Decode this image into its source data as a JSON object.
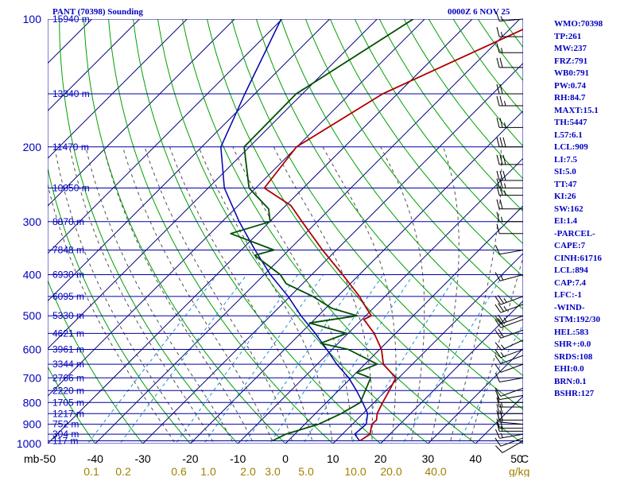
{
  "header": {
    "station_title": "PANT (70398) Sounding",
    "datetime": "0000Z  6 NOV 25"
  },
  "indices": [
    "WMO:70398",
    "TP:261",
    "MW:237",
    "FRZ:791",
    "WB0:791",
    "PW:0.74",
    "RH:84.7",
    "MAXT:15.1",
    "TH:5447",
    "L57:6.1",
    "LCL:909",
    "LI:7.5",
    "SI:5.0",
    "TT:47",
    "KI:26",
    "SW:162",
    "EI:1.4",
    "-PARCEL-",
    "CAPE:7",
    "CINH:61716",
    "LCL:894",
    "CAP:7.4",
    "LFC:-1",
    "-WIND-",
    "STM:192/30",
    "HEL:583",
    "SHR+:0.0",
    "SRDS:108",
    "EHI:0.0",
    "BRN:0.1",
    "BSHR:127"
  ],
  "colors": {
    "isobar": "#0000a0",
    "isotherm": "#000080",
    "dry_adiabat": "#00a000",
    "moist_adiabat": "#505050",
    "mixing_ratio": "#2090d0",
    "temperature": "#b00000",
    "dewpoint": "#005000",
    "parcel": "#0000b0",
    "wind_barb": "#000000",
    "text": "#0000c0",
    "axis_text": "#000000",
    "mixing_ratio_text": "#a08000"
  },
  "chart_data": {
    "type": "skew-t log-p",
    "pressure_axis": {
      "unit_label": "mb",
      "range": [
        100,
        1000
      ],
      "scale": "log",
      "labeled_ticks": [
        100,
        200,
        300,
        400,
        500,
        600,
        700,
        800,
        900,
        1000
      ]
    },
    "temperature_axis": {
      "unit_label": "C",
      "range": [
        -50,
        50
      ],
      "tick_labels": [
        "-50",
        "-40",
        "-30",
        "-20",
        "-10",
        "0",
        "10",
        "20",
        "30",
        "40",
        "50"
      ]
    },
    "mixing_ratio_axis": {
      "unit_label": "g/kg",
      "tick_labels": [
        "0.1",
        "0.2",
        "0.6",
        "1.0",
        "2.0",
        "3.0",
        "5.0",
        "10.0",
        "20.0",
        "40.0"
      ],
      "values": [
        0.1,
        0.2,
        0.6,
        1.0,
        2.0,
        3.0,
        5.0,
        10.0,
        20.0,
        40.0
      ]
    },
    "height_levels": [
      {
        "p": 100,
        "label": "15940 m"
      },
      {
        "p": 150,
        "label": "13340 m"
      },
      {
        "p": 200,
        "label": "11470 m"
      },
      {
        "p": 250,
        "label": "10050 m"
      },
      {
        "p": 300,
        "label": "8870 m"
      },
      {
        "p": 350,
        "label": "7848 m"
      },
      {
        "p": 400,
        "label": "6930 m"
      },
      {
        "p": 450,
        "label": "6095 m"
      },
      {
        "p": 500,
        "label": "5330 m"
      },
      {
        "p": 550,
        "label": "4621 m"
      },
      {
        "p": 600,
        "label": "3961 m"
      },
      {
        "p": 650,
        "label": "3344 m"
      },
      {
        "p": 700,
        "label": "2766 m"
      },
      {
        "p": 750,
        "label": "2220 m"
      },
      {
        "p": 800,
        "label": "1705 m"
      },
      {
        "p": 850,
        "label": "1217 m"
      },
      {
        "p": 900,
        "label": "752 m"
      },
      {
        "p": 950,
        "label": "304 m"
      },
      {
        "p": 985,
        "label": "117 m"
      }
    ],
    "temperature_profile": [
      {
        "p": 100,
        "t": -34.6
      },
      {
        "p": 150,
        "t": -53.1
      },
      {
        "p": 200,
        "t": -60.1
      },
      {
        "p": 250,
        "t": -58.2
      },
      {
        "p": 275,
        "t": -48.9
      },
      {
        "p": 300,
        "t": -43.2
      },
      {
        "p": 350,
        "t": -32.9
      },
      {
        "p": 400,
        "t": -23.5
      },
      {
        "p": 450,
        "t": -15.4
      },
      {
        "p": 480,
        "t": -11.4
      },
      {
        "p": 500,
        "t": -8.8
      },
      {
        "p": 510,
        "t": -9.6
      },
      {
        "p": 550,
        "t": -4.5
      },
      {
        "p": 600,
        "t": 0.4
      },
      {
        "p": 650,
        "t": 3.9
      },
      {
        "p": 700,
        "t": 9.4
      },
      {
        "p": 750,
        "t": 10.7
      },
      {
        "p": 800,
        "t": 11.8
      },
      {
        "p": 850,
        "t": 13.0
      },
      {
        "p": 880,
        "t": 14.2
      },
      {
        "p": 900,
        "t": 14.1
      },
      {
        "p": 950,
        "t": 15.8
      },
      {
        "p": 985,
        "t": 15.1
      }
    ],
    "dewpoint_profile": [
      {
        "p": 100,
        "td": -62.4
      },
      {
        "p": 150,
        "td": -71.3
      },
      {
        "p": 200,
        "td": -71.1
      },
      {
        "p": 250,
        "td": -61.4
      },
      {
        "p": 280,
        "td": -52.9
      },
      {
        "p": 300,
        "td": -49.9
      },
      {
        "p": 320,
        "td": -55.7
      },
      {
        "p": 350,
        "td": -43.1
      },
      {
        "p": 360,
        "td": -46.1
      },
      {
        "p": 400,
        "td": -36.6
      },
      {
        "p": 420,
        "td": -33.5
      },
      {
        "p": 450,
        "td": -25.2
      },
      {
        "p": 480,
        "td": -18.7
      },
      {
        "p": 500,
        "td": -11.8
      },
      {
        "p": 520,
        "td": -20.3
      },
      {
        "p": 550,
        "td": -10.3
      },
      {
        "p": 580,
        "td": -13.7
      },
      {
        "p": 600,
        "td": -6.6
      },
      {
        "p": 650,
        "td": 2.6
      },
      {
        "p": 680,
        "td": 0.0
      },
      {
        "p": 700,
        "td": 4.1
      },
      {
        "p": 800,
        "td": 7.1
      },
      {
        "p": 850,
        "td": 5.4
      },
      {
        "p": 900,
        "td": 2.9
      },
      {
        "p": 950,
        "td": -1.9
      },
      {
        "p": 985,
        "td": -3.3
      }
    ],
    "parcel_profile": [
      {
        "p": 100,
        "t": -90.2
      },
      {
        "p": 150,
        "t": -82.1
      },
      {
        "p": 200,
        "t": -76.0
      },
      {
        "p": 250,
        "t": -66.6
      },
      {
        "p": 300,
        "t": -56.4
      },
      {
        "p": 350,
        "t": -47.1
      },
      {
        "p": 400,
        "t": -38.7
      },
      {
        "p": 450,
        "t": -30.4
      },
      {
        "p": 500,
        "t": -23.6
      },
      {
        "p": 550,
        "t": -16.9
      },
      {
        "p": 600,
        "t": -11.1
      },
      {
        "p": 650,
        "t": -5.9
      },
      {
        "p": 700,
        "t": -0.5
      },
      {
        "p": 750,
        "t": 3.8
      },
      {
        "p": 800,
        "t": 7.6
      },
      {
        "p": 850,
        "t": 11.0
      },
      {
        "p": 900,
        "t": 12.9
      },
      {
        "p": 950,
        "t": 12.6
      },
      {
        "p": 985,
        "t": 15.0
      }
    ],
    "wind_profile": [
      {
        "p": 985,
        "dir": 240,
        "kt": 10
      },
      {
        "p": 970,
        "dir": 250,
        "kt": 10
      },
      {
        "p": 950,
        "dir": 260,
        "kt": 15
      },
      {
        "p": 935,
        "dir": 270,
        "kt": 15
      },
      {
        "p": 920,
        "dir": 270,
        "kt": 20
      },
      {
        "p": 900,
        "dir": 275,
        "kt": 20
      },
      {
        "p": 880,
        "dir": 270,
        "kt": 20
      },
      {
        "p": 850,
        "dir": 270,
        "kt": 20
      },
      {
        "p": 820,
        "dir": 270,
        "kt": 15
      },
      {
        "p": 800,
        "dir": 270,
        "kt": 10
      },
      {
        "p": 770,
        "dir": 260,
        "kt": 10
      },
      {
        "p": 740,
        "dir": 250,
        "kt": 10
      },
      {
        "p": 700,
        "dir": 260,
        "kt": 10
      },
      {
        "p": 650,
        "dir": 250,
        "kt": 10
      },
      {
        "p": 620,
        "dir": 250,
        "kt": 10
      },
      {
        "p": 600,
        "dir": 250,
        "kt": 15
      },
      {
        "p": 570,
        "dir": 245,
        "kt": 15
      },
      {
        "p": 540,
        "dir": 250,
        "kt": 20
      },
      {
        "p": 510,
        "dir": 250,
        "kt": 20
      },
      {
        "p": 500,
        "dir": 250,
        "kt": 25
      },
      {
        "p": 470,
        "dir": 250,
        "kt": 25
      },
      {
        "p": 450,
        "dir": 250,
        "kt": 25
      },
      {
        "p": 400,
        "dir": 255,
        "kt": 15
      },
      {
        "p": 350,
        "dir": 260,
        "kt": 10
      },
      {
        "p": 320,
        "dir": 270,
        "kt": 10
      },
      {
        "p": 300,
        "dir": 270,
        "kt": 15
      },
      {
        "p": 280,
        "dir": 270,
        "kt": 20
      },
      {
        "p": 260,
        "dir": 270,
        "kt": 25
      },
      {
        "p": 250,
        "dir": 270,
        "kt": 25
      },
      {
        "p": 240,
        "dir": 270,
        "kt": 30
      },
      {
        "p": 220,
        "dir": 270,
        "kt": 30
      },
      {
        "p": 200,
        "dir": 270,
        "kt": 30
      },
      {
        "p": 180,
        "dir": 270,
        "kt": 25
      },
      {
        "p": 160,
        "dir": 270,
        "kt": 25
      },
      {
        "p": 150,
        "dir": 270,
        "kt": 20
      },
      {
        "p": 130,
        "dir": 270,
        "kt": 20
      },
      {
        "p": 120,
        "dir": 270,
        "kt": 15
      },
      {
        "p": 110,
        "dir": 270,
        "kt": 15
      },
      {
        "p": 100,
        "dir": 265,
        "kt": 15
      }
    ]
  }
}
